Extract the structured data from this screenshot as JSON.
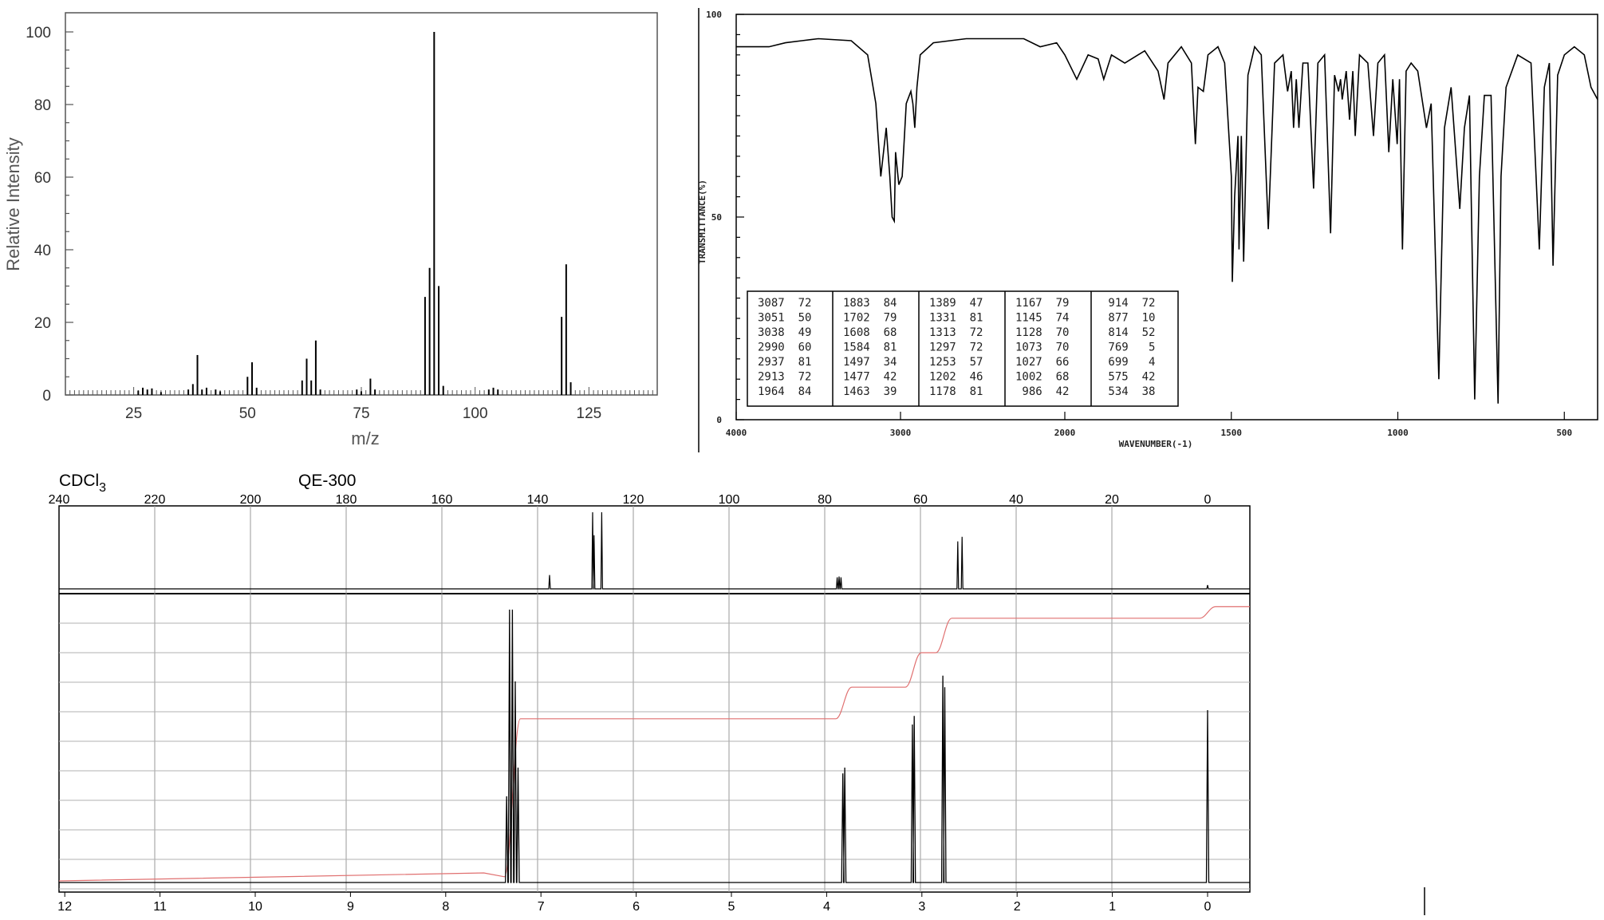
{
  "chart_data": [
    {
      "type": "bar",
      "panel": "mass-spectrum",
      "xlabel": "m/z",
      "ylabel": "Relative Intensity",
      "xlim": [
        10,
        140
      ],
      "ylim": [
        0,
        100
      ],
      "x_ticks": [
        "25",
        "50",
        "75",
        "100",
        "125"
      ],
      "y_ticks": [
        "0",
        "20",
        "40",
        "60",
        "80",
        "100"
      ],
      "peaks": [
        {
          "mz": 26,
          "intensity": 1.2
        },
        {
          "mz": 27,
          "intensity": 2
        },
        {
          "mz": 28,
          "intensity": 1.5
        },
        {
          "mz": 29,
          "intensity": 1.8
        },
        {
          "mz": 31,
          "intensity": 0.8
        },
        {
          "mz": 37,
          "intensity": 1.5
        },
        {
          "mz": 38,
          "intensity": 3
        },
        {
          "mz": 39,
          "intensity": 11
        },
        {
          "mz": 40,
          "intensity": 1.5
        },
        {
          "mz": 41,
          "intensity": 2
        },
        {
          "mz": 43,
          "intensity": 1.5
        },
        {
          "mz": 44,
          "intensity": 1
        },
        {
          "mz": 50,
          "intensity": 5
        },
        {
          "mz": 51,
          "intensity": 9
        },
        {
          "mz": 52,
          "intensity": 2
        },
        {
          "mz": 62,
          "intensity": 4
        },
        {
          "mz": 63,
          "intensity": 10
        },
        {
          "mz": 64,
          "intensity": 4
        },
        {
          "mz": 65,
          "intensity": 15
        },
        {
          "mz": 66,
          "intensity": 1.5
        },
        {
          "mz": 74,
          "intensity": 1.5
        },
        {
          "mz": 75,
          "intensity": 1
        },
        {
          "mz": 77,
          "intensity": 4.5
        },
        {
          "mz": 78,
          "intensity": 1.5
        },
        {
          "mz": 89,
          "intensity": 27
        },
        {
          "mz": 90,
          "intensity": 35
        },
        {
          "mz": 91,
          "intensity": 100
        },
        {
          "mz": 92,
          "intensity": 30
        },
        {
          "mz": 93,
          "intensity": 2.5
        },
        {
          "mz": 103,
          "intensity": 1.5
        },
        {
          "mz": 104,
          "intensity": 2
        },
        {
          "mz": 105,
          "intensity": 1.5
        },
        {
          "mz": 119,
          "intensity": 21.5
        },
        {
          "mz": 120,
          "intensity": 36
        },
        {
          "mz": 121,
          "intensity": 3.5
        }
      ]
    },
    {
      "type": "line",
      "panel": "ir-spectrum",
      "xlabel": "WAVENUMBER(-1)",
      "ylabel": "TRANSMITTANCE(%)",
      "xlim": [
        4000,
        400
      ],
      "ylim": [
        0,
        100
      ],
      "x_ticks": [
        "4000",
        "3000",
        "2000",
        "1500",
        "1000",
        "500"
      ],
      "y_ticks": [
        "0",
        "50",
        "100"
      ],
      "trace": [
        [
          4000,
          92
        ],
        [
          3800,
          92
        ],
        [
          3700,
          93
        ],
        [
          3600,
          93.5
        ],
        [
          3500,
          94
        ],
        [
          3300,
          93.5
        ],
        [
          3200,
          90
        ],
        [
          3150,
          78
        ],
        [
          3120,
          60
        ],
        [
          3087,
          72
        ],
        [
          3065,
          60
        ],
        [
          3051,
          50
        ],
        [
          3038,
          49
        ],
        [
          3030,
          66
        ],
        [
          3010,
          58
        ],
        [
          2990,
          60
        ],
        [
          2965,
          78
        ],
        [
          2937,
          81
        ],
        [
          2925,
          78
        ],
        [
          2913,
          72
        ],
        [
          2900,
          82
        ],
        [
          2880,
          90
        ],
        [
          2800,
          93
        ],
        [
          2600,
          94
        ],
        [
          2400,
          94
        ],
        [
          2250,
          94
        ],
        [
          2150,
          92
        ],
        [
          2050,
          93
        ],
        [
          2000,
          90
        ],
        [
          1964,
          84
        ],
        [
          1930,
          90
        ],
        [
          1900,
          89
        ],
        [
          1883,
          84
        ],
        [
          1860,
          90
        ],
        [
          1820,
          88
        ],
        [
          1780,
          90
        ],
        [
          1760,
          91
        ],
        [
          1720,
          86
        ],
        [
          1702,
          79
        ],
        [
          1690,
          88
        ],
        [
          1650,
          92
        ],
        [
          1620,
          88
        ],
        [
          1608,
          68
        ],
        [
          1600,
          82
        ],
        [
          1584,
          81
        ],
        [
          1570,
          90
        ],
        [
          1540,
          92
        ],
        [
          1520,
          88
        ],
        [
          1500,
          60
        ],
        [
          1497,
          34
        ],
        [
          1490,
          55
        ],
        [
          1480,
          70
        ],
        [
          1477,
          42
        ],
        [
          1470,
          70
        ],
        [
          1463,
          39
        ],
        [
          1450,
          85
        ],
        [
          1430,
          92
        ],
        [
          1410,
          90
        ],
        [
          1389,
          47
        ],
        [
          1370,
          88
        ],
        [
          1345,
          90
        ],
        [
          1331,
          81
        ],
        [
          1320,
          86
        ],
        [
          1313,
          72
        ],
        [
          1305,
          84
        ],
        [
          1297,
          72
        ],
        [
          1285,
          88
        ],
        [
          1270,
          88
        ],
        [
          1253,
          57
        ],
        [
          1240,
          88
        ],
        [
          1220,
          90
        ],
        [
          1202,
          46
        ],
        [
          1190,
          85
        ],
        [
          1178,
          81
        ],
        [
          1172,
          84
        ],
        [
          1167,
          79
        ],
        [
          1155,
          86
        ],
        [
          1145,
          74
        ],
        [
          1135,
          86
        ],
        [
          1128,
          70
        ],
        [
          1115,
          90
        ],
        [
          1090,
          88
        ],
        [
          1073,
          70
        ],
        [
          1060,
          88
        ],
        [
          1040,
          90
        ],
        [
          1027,
          66
        ],
        [
          1015,
          84
        ],
        [
          1002,
          68
        ],
        [
          995,
          84
        ],
        [
          986,
          42
        ],
        [
          975,
          86
        ],
        [
          960,
          88
        ],
        [
          940,
          86
        ],
        [
          914,
          72
        ],
        [
          900,
          78
        ],
        [
          877,
          10
        ],
        [
          860,
          72
        ],
        [
          840,
          82
        ],
        [
          814,
          52
        ],
        [
          800,
          72
        ],
        [
          785,
          80
        ],
        [
          769,
          5
        ],
        [
          755,
          60
        ],
        [
          740,
          80
        ],
        [
          720,
          80
        ],
        [
          699,
          4
        ],
        [
          690,
          60
        ],
        [
          675,
          82
        ],
        [
          640,
          90
        ],
        [
          600,
          88
        ],
        [
          575,
          42
        ],
        [
          560,
          82
        ],
        [
          545,
          88
        ],
        [
          534,
          38
        ],
        [
          520,
          85
        ],
        [
          500,
          90
        ],
        [
          470,
          92
        ],
        [
          440,
          90
        ],
        [
          420,
          82
        ],
        [
          400,
          79
        ]
      ],
      "peak_table_columns": [
        [
          "3087  72",
          "3051  50",
          "3038  49",
          "2990  60",
          "2937  81",
          "2913  72",
          "1964  84"
        ],
        [
          "1883  84",
          "1702  79",
          "1608  68",
          "1584  81",
          "1497  34",
          "1477  42",
          "1463  39"
        ],
        [
          "1389  47",
          "1331  81",
          "1313  72",
          "1297  72",
          "1253  57",
          "1202  46",
          "1178  81"
        ],
        [
          "1167  79",
          "1145  74",
          "1128  70",
          "1073  70",
          "1027  66",
          "1002  68",
          " 986  42"
        ],
        [
          " 914  72",
          " 877  10",
          " 814  52",
          " 769   5",
          " 699   4",
          " 575  42",
          " 534  38"
        ]
      ]
    },
    {
      "type": "line",
      "panel": "13c-nmr",
      "solvent": "CDCl",
      "solvent_subscript": "3",
      "instrument": "QE-300",
      "xlim": [
        240,
        -10
      ],
      "x_ticks": [
        "240",
        "220",
        "200",
        "180",
        "160",
        "140",
        "120",
        "100",
        "80",
        "60",
        "40",
        "20",
        "0"
      ],
      "peaks": [
        {
          "ppm": 137.5,
          "height": 0.18
        },
        {
          "ppm": 128.5,
          "height": 1.0
        },
        {
          "ppm": 128.2,
          "height": 0.7
        },
        {
          "ppm": 126.6,
          "height": 1.0
        },
        {
          "ppm": 77.4,
          "height": 0.15
        },
        {
          "ppm": 77.0,
          "height": 0.16
        },
        {
          "ppm": 76.6,
          "height": 0.15
        },
        {
          "ppm": 52.2,
          "height": 0.62
        },
        {
          "ppm": 51.3,
          "height": 0.68
        },
        {
          "ppm": 0.0,
          "height": 0.05
        }
      ]
    },
    {
      "type": "line",
      "panel": "1h-nmr",
      "xlim": [
        12,
        -0.5
      ],
      "x_ticks": [
        "12",
        "11",
        "10",
        "9",
        "8",
        "7",
        "6",
        "5",
        "4",
        "3",
        "2",
        "1",
        "0"
      ],
      "peaks": [
        {
          "ppm": 7.36,
          "height": 0.3
        },
        {
          "ppm": 7.33,
          "height": 0.95
        },
        {
          "ppm": 7.3,
          "height": 0.95
        },
        {
          "ppm": 7.27,
          "height": 0.7
        },
        {
          "ppm": 7.24,
          "height": 0.4
        },
        {
          "ppm": 3.83,
          "height": 0.38
        },
        {
          "ppm": 3.81,
          "height": 0.4
        },
        {
          "ppm": 3.1,
          "height": 0.55
        },
        {
          "ppm": 3.08,
          "height": 0.58
        },
        {
          "ppm": 2.78,
          "height": 0.72
        },
        {
          "ppm": 2.76,
          "height": 0.68
        },
        {
          "ppm": 0.0,
          "height": 0.6
        }
      ],
      "integration_steps": [
        {
          "ppm": 7.3,
          "level": 0.57
        },
        {
          "ppm": 3.82,
          "level": 0.68
        },
        {
          "ppm": 3.09,
          "level": 0.8
        },
        {
          "ppm": 2.77,
          "level": 0.92
        },
        {
          "ppm": 0.0,
          "level": 0.96
        }
      ]
    }
  ],
  "colors": {
    "trace": "#000000",
    "integral": "#e07070",
    "grid": "#9a9a9a",
    "ms_frame": "#555555"
  }
}
